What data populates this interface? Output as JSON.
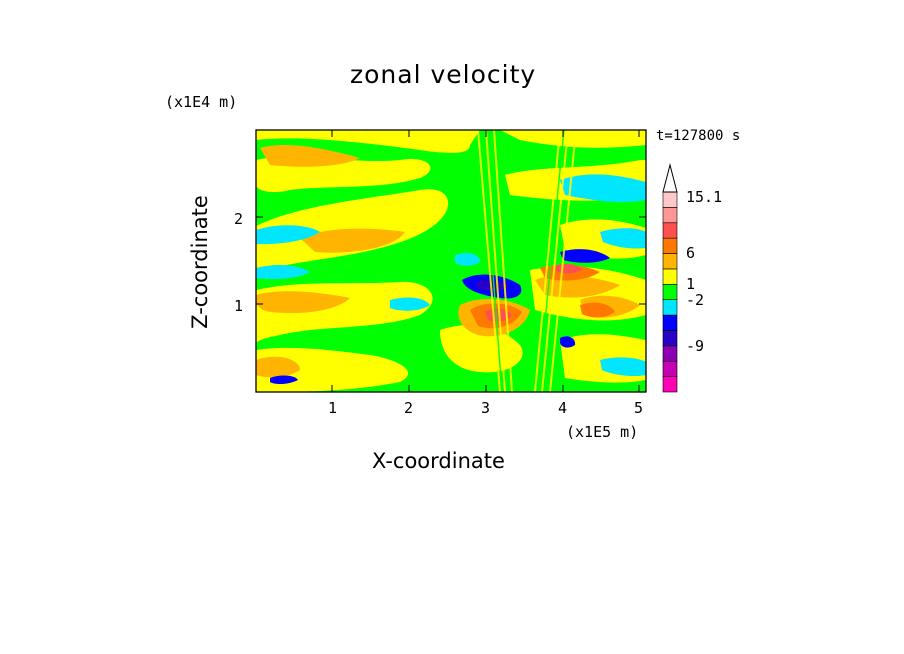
{
  "chart_data": {
    "type": "heatmap",
    "title": "zonal velocity",
    "xlabel": "X-coordinate",
    "ylabel": "Z-coordinate",
    "x_unit": "(x1E5 m)",
    "y_unit": "(x1E4 m)",
    "time_label": "t=127800 s",
    "xlim": [
      0,
      5.15
    ],
    "ylim": [
      0,
      2.97
    ],
    "x_ticks": [
      "1",
      "2",
      "3",
      "4",
      "5"
    ],
    "y_ticks": [
      "1",
      "2"
    ],
    "colorbar": {
      "labels": [
        "15.1",
        "6",
        "1",
        "-2",
        "-9"
      ],
      "bands": [
        {
          "color": "#ff00b4"
        },
        {
          "color": "#c800b4"
        },
        {
          "color": "#8c00b4"
        },
        {
          "color": "#2800c8"
        },
        {
          "color": "#0000ff"
        },
        {
          "color": "#00e6ff"
        },
        {
          "color": "#00ff00"
        },
        {
          "color": "#ffff00"
        },
        {
          "color": "#ffb400"
        },
        {
          "color": "#ff7800"
        },
        {
          "color": "#ff5050"
        },
        {
          "color": "#ff9696"
        },
        {
          "color": "#ffc8c8"
        }
      ]
    }
  }
}
